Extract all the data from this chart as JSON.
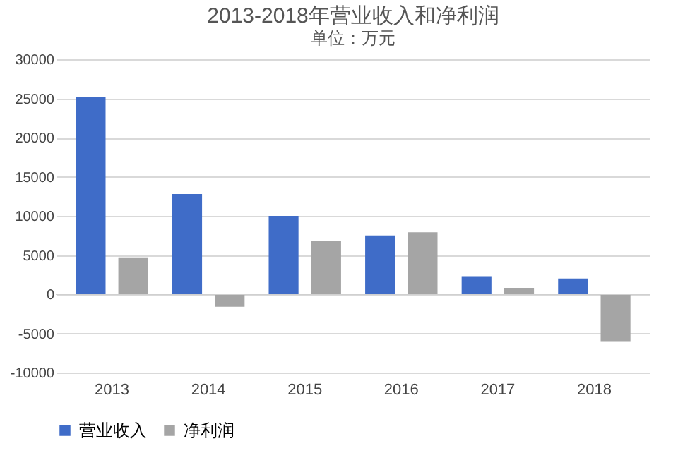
{
  "chart_data": {
    "type": "bar",
    "title": "2013-2018年营业收入和净利润",
    "subtitle": "单位：万元",
    "categories": [
      "2013",
      "2014",
      "2015",
      "2016",
      "2017",
      "2018"
    ],
    "series": [
      {
        "name": "营业收入",
        "color": "#3f6cc8",
        "values": [
          25200,
          12800,
          10000,
          7500,
          2300,
          2000
        ]
      },
      {
        "name": "净利润",
        "color": "#a5a5a5",
        "values": [
          4700,
          -1600,
          6800,
          7900,
          800,
          -6000
        ]
      }
    ],
    "ylim": [
      -10000,
      30000
    ],
    "yticks": [
      -10000,
      -5000,
      0,
      5000,
      10000,
      15000,
      20000,
      25000,
      30000
    ],
    "grid": "y",
    "legend": "bottom"
  }
}
